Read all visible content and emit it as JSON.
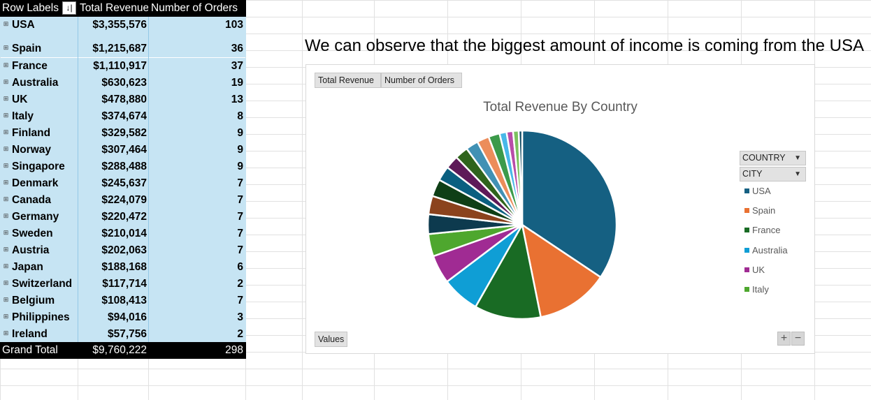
{
  "note": "We can observe that the biggest amount of income is coming from the USA",
  "pivot": {
    "headers": {
      "row_labels": "Row Labels",
      "total_revenue": "Total Revenue",
      "number_of_orders": "Number of Orders"
    },
    "expand_icon": "plus-box-icon",
    "filter_icon": "sort-filter-icon",
    "rows": [
      {
        "country": "USA",
        "revenue": "$3,355,576",
        "orders": "103"
      },
      {
        "country": "Spain",
        "revenue": "$1,215,687",
        "orders": "36"
      },
      {
        "country": "France",
        "revenue": "$1,110,917",
        "orders": "37"
      },
      {
        "country": "Australia",
        "revenue": "$630,623",
        "orders": "19"
      },
      {
        "country": "UK",
        "revenue": "$478,880",
        "orders": "13"
      },
      {
        "country": "Italy",
        "revenue": "$374,674",
        "orders": "8"
      },
      {
        "country": "Finland",
        "revenue": "$329,582",
        "orders": "9"
      },
      {
        "country": "Norway",
        "revenue": "$307,464",
        "orders": "9"
      },
      {
        "country": "Singapore",
        "revenue": "$288,488",
        "orders": "9"
      },
      {
        "country": "Denmark",
        "revenue": "$245,637",
        "orders": "7"
      },
      {
        "country": "Canada",
        "revenue": "$224,079",
        "orders": "7"
      },
      {
        "country": "Germany",
        "revenue": "$220,472",
        "orders": "7"
      },
      {
        "country": "Sweden",
        "revenue": "$210,014",
        "orders": "7"
      },
      {
        "country": "Austria",
        "revenue": "$202,063",
        "orders": "7"
      },
      {
        "country": "Japan",
        "revenue": "$188,168",
        "orders": "6"
      },
      {
        "country": "Switzerland",
        "revenue": "$117,714",
        "orders": "2"
      },
      {
        "country": "Belgium",
        "revenue": "$108,413",
        "orders": "7"
      },
      {
        "country": "Philippines",
        "revenue": "$94,016",
        "orders": "3"
      },
      {
        "country": "Ireland",
        "revenue": "$57,756",
        "orders": "2"
      }
    ],
    "grand_total": {
      "label": "Grand Total",
      "revenue": "$9,760,222",
      "orders": "298"
    }
  },
  "chart": {
    "field_buttons": {
      "total_revenue": "Total Revenue",
      "number_of_orders": "Number of Orders",
      "values": "Values"
    },
    "filters": {
      "country": "COUNTRY",
      "city": "CITY"
    },
    "zoom": {
      "plus": "+",
      "minus": "−"
    },
    "legend": [
      {
        "name": "USA",
        "color": "#156082"
      },
      {
        "name": "Spain",
        "color": "#e97132"
      },
      {
        "name": "France",
        "color": "#196b24"
      },
      {
        "name": "Australia",
        "color": "#0f9ed5"
      },
      {
        "name": "UK",
        "color": "#a02b93"
      },
      {
        "name": "Italy",
        "color": "#4ea72e"
      }
    ]
  },
  "chart_data": {
    "type": "pie",
    "title": "Total Revenue By Country",
    "categories": [
      "USA",
      "Spain",
      "France",
      "Australia",
      "UK",
      "Italy",
      "Finland",
      "Norway",
      "Singapore",
      "Denmark",
      "Canada",
      "Germany",
      "Sweden",
      "Austria",
      "Japan",
      "Switzerland",
      "Belgium",
      "Philippines",
      "Ireland"
    ],
    "values": [
      3355576,
      1215687,
      1110917,
      630623,
      478880,
      374674,
      329582,
      307464,
      288488,
      245637,
      224079,
      220472,
      210014,
      202063,
      188168,
      117714,
      108413,
      94016,
      57756
    ],
    "colors": [
      "#156082",
      "#e97132",
      "#196b24",
      "#0f9ed5",
      "#a02b93",
      "#4ea72e",
      "#0d3a4e",
      "#8b431d",
      "#0f3f16",
      "#0a5f80",
      "#5e1a58",
      "#2f641c",
      "#4191b4",
      "#ec8d5b",
      "#3c9a4a",
      "#48b8e8",
      "#b84ca8",
      "#7cc15e",
      "#0e4a63"
    ],
    "legend_position": "right"
  }
}
